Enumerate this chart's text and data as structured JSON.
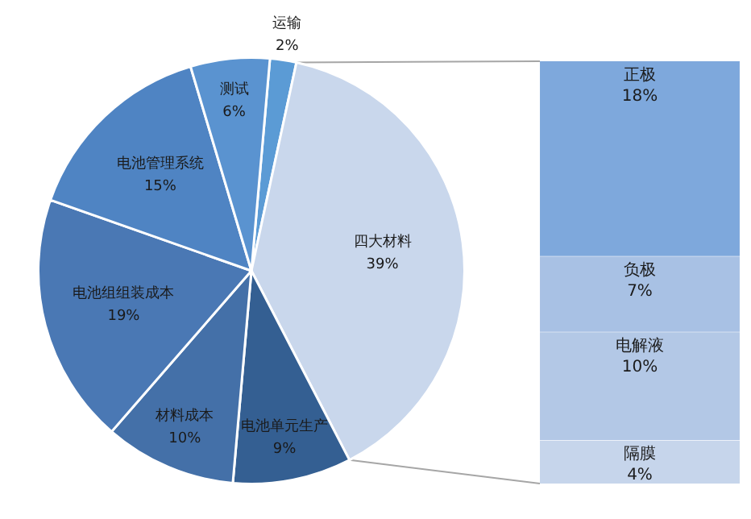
{
  "chart_data": [
    {
      "type": "pie",
      "categories": [
        "运输",
        "四大材料",
        "电池单元生产",
        "材料成本",
        "电池组组装成本",
        "电池管理系统",
        "测试"
      ],
      "values": [
        2,
        39,
        9,
        10,
        19,
        15,
        6
      ],
      "value_labels": [
        "2%",
        "39%",
        "9%",
        "10%",
        "19%",
        "15%",
        "6%"
      ],
      "colors": [
        "#5b9bd5",
        "#c9d7ec",
        "#345f92",
        "#4470a8",
        "#4a78b4",
        "#4f84c3",
        "#5a93d0"
      ],
      "legend": false
    },
    {
      "type": "bar",
      "categories": [
        null
      ],
      "stacked": true,
      "data_labels": true,
      "legend": false,
      "series": [
        {
          "name": "隔膜",
          "color": "#c6d5eb",
          "values": [
            4
          ],
          "value_labels": [
            "4%"
          ]
        },
        {
          "name": "电解液",
          "color": "#b3c8e6",
          "values": [
            10
          ],
          "value_labels": [
            "10%"
          ]
        },
        {
          "name": "负极",
          "color": "#a8c1e4",
          "values": [
            7
          ],
          "value_labels": [
            "7%"
          ]
        },
        {
          "name": "正极",
          "color": "#7ea8dc",
          "values": [
            18
          ],
          "value_labels": [
            "18%"
          ]
        }
      ]
    }
  ]
}
